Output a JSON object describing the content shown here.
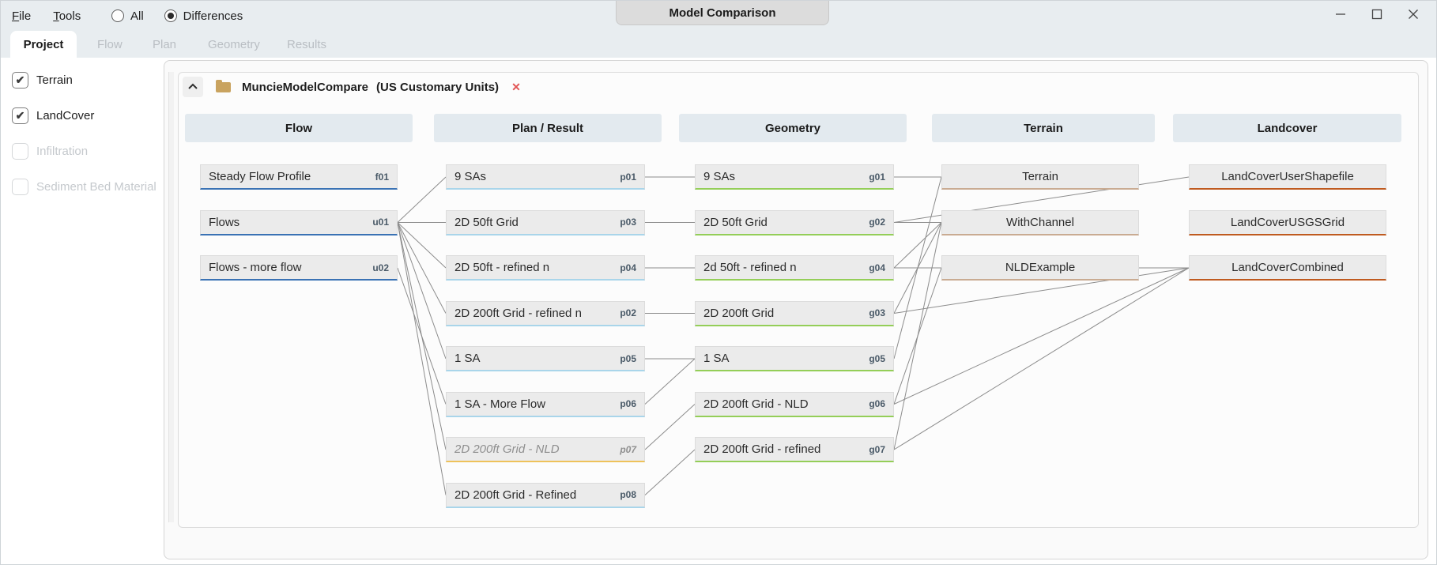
{
  "window": {
    "title": "Model Comparison",
    "menus": [
      {
        "label": "File"
      },
      {
        "label": "Tools"
      }
    ],
    "view_options": [
      {
        "label": "All",
        "selected": false
      },
      {
        "label": "Differences",
        "selected": true
      }
    ],
    "controls": [
      {
        "name": "minimize"
      },
      {
        "name": "maximize"
      },
      {
        "name": "close"
      }
    ]
  },
  "tabs": [
    {
      "label": "Project",
      "active": true,
      "enabled": true
    },
    {
      "label": "Flow",
      "active": false,
      "enabled": false
    },
    {
      "label": "Plan",
      "active": false,
      "enabled": false
    },
    {
      "label": "Geometry",
      "active": false,
      "enabled": false
    },
    {
      "label": "Results",
      "active": false,
      "enabled": false
    }
  ],
  "sidebar": {
    "check_glyph": "✔",
    "items": [
      {
        "label": "Terrain",
        "checked": true,
        "enabled": true
      },
      {
        "label": "LandCover",
        "checked": true,
        "enabled": true
      },
      {
        "label": "Infiltration",
        "checked": false,
        "enabled": false
      },
      {
        "label": "Sediment Bed Material",
        "checked": false,
        "enabled": false
      }
    ]
  },
  "model": {
    "name": "MuncieModelCompare",
    "units": "(US Customary Units)",
    "close_glyph": "✕"
  },
  "columns": [
    {
      "id": "flow",
      "header": "Flow",
      "underline": "#3a72b4",
      "align": "left",
      "items": [
        {
          "id": "f01",
          "label": "Steady Flow Profile",
          "badge": "f01"
        },
        {
          "id": "u01",
          "label": "Flows",
          "badge": "u01"
        },
        {
          "id": "u02",
          "label": "Flows - more flow",
          "badge": "u02"
        }
      ]
    },
    {
      "id": "plan",
      "header": "Plan / Result",
      "underline": "#a9d5ea",
      "align": "left",
      "items": [
        {
          "id": "p01",
          "label": "9 SAs",
          "badge": "p01"
        },
        {
          "id": "p03",
          "label": "2D 50ft Grid",
          "badge": "p03"
        },
        {
          "id": "p04",
          "label": "2D 50ft - refined n",
          "badge": "p04"
        },
        {
          "id": "p02",
          "label": "2D 200ft Grid - refined n",
          "badge": "p02"
        },
        {
          "id": "p05",
          "label": "1 SA",
          "badge": "p05"
        },
        {
          "id": "p06",
          "label": "1 SA - More Flow",
          "badge": "p06"
        },
        {
          "id": "p07",
          "label": "2D 200ft Grid - NLD",
          "badge": "p07",
          "italic": true,
          "muted": true,
          "underline": "#eec25a"
        },
        {
          "id": "p08",
          "label": "2D 200ft Grid - Refined",
          "badge": "p08"
        }
      ]
    },
    {
      "id": "geometry",
      "header": "Geometry",
      "underline": "#94ce58",
      "align": "left",
      "items": [
        {
          "id": "g01",
          "label": "9 SAs",
          "badge": "g01"
        },
        {
          "id": "g02",
          "label": "2D 50ft Grid",
          "badge": "g02"
        },
        {
          "id": "g04",
          "label": "2d 50ft - refined n",
          "badge": "g04"
        },
        {
          "id": "g03",
          "label": "2D 200ft Grid",
          "badge": "g03"
        },
        {
          "id": "g05",
          "label": "1 SA",
          "badge": "g05"
        },
        {
          "id": "g06",
          "label": "2D 200ft Grid - NLD",
          "badge": "g06"
        },
        {
          "id": "g07",
          "label": "2D 200ft Grid - refined",
          "badge": "g07"
        }
      ]
    },
    {
      "id": "terrain",
      "header": "Terrain",
      "underline": "#c9ab92",
      "align": "center",
      "items": [
        {
          "id": "t1",
          "label": "Terrain"
        },
        {
          "id": "t2",
          "label": "WithChannel"
        },
        {
          "id": "t3",
          "label": "NLDExample"
        }
      ]
    },
    {
      "id": "landcover",
      "header": "Landcover",
      "underline": "#bf5a1f",
      "align": "center",
      "items": [
        {
          "id": "lc1",
          "label": "LandCoverUserShapefile"
        },
        {
          "id": "lc2",
          "label": "LandCoverUSGSGrid"
        },
        {
          "id": "lc3",
          "label": "LandCoverCombined"
        }
      ]
    }
  ],
  "connections": [
    [
      "u01",
      "p01"
    ],
    [
      "u01",
      "p03"
    ],
    [
      "u01",
      "p04"
    ],
    [
      "u01",
      "p02"
    ],
    [
      "u01",
      "p05"
    ],
    [
      "u02",
      "p06"
    ],
    [
      "u01",
      "p07"
    ],
    [
      "u01",
      "p08"
    ],
    [
      "p01",
      "g01"
    ],
    [
      "p03",
      "g02"
    ],
    [
      "p04",
      "g04"
    ],
    [
      "p02",
      "g03"
    ],
    [
      "p05",
      "g05"
    ],
    [
      "p06",
      "g05"
    ],
    [
      "p07",
      "g06"
    ],
    [
      "p08",
      "g07"
    ],
    [
      "g01",
      "t1"
    ],
    [
      "g02",
      "t2"
    ],
    [
      "g04",
      "t2"
    ],
    [
      "g03",
      "t2"
    ],
    [
      "g05",
      "t1"
    ],
    [
      "g06",
      "t3"
    ],
    [
      "g07",
      "t2"
    ],
    [
      "g02",
      "lc1"
    ],
    [
      "g04",
      "lc3"
    ],
    [
      "g03",
      "lc3"
    ],
    [
      "g06",
      "lc3"
    ],
    [
      "g07",
      "lc3"
    ]
  ],
  "colors": {
    "connector": "#8c8c8c",
    "titlebar_bg": "#e8edf0",
    "badge": "#4a5a68"
  }
}
